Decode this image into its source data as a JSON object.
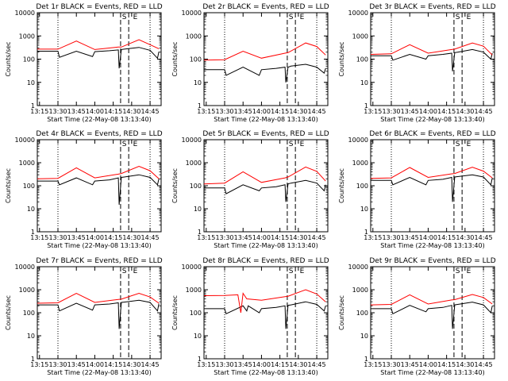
{
  "figure": {
    "ylabel": "Counts/sec",
    "xlabel": "Start Time (22-May-08 13:13:40)",
    "x_ticks": [
      "13:15",
      "13:30",
      "13:45",
      "14:00",
      "14:15",
      "14:30",
      "14:45"
    ],
    "y_ticks": [
      "1",
      "10",
      "100",
      "1000",
      "10000"
    ],
    "marker_S": "S",
    "marker_E": "E",
    "colors": {
      "events": "#000000",
      "lld": "#ff0000"
    }
  },
  "chart_data": [
    {
      "type": "line",
      "title": "Det 1r BLACK = Events, RED = LLD",
      "ylog": true,
      "ylim": [
        1,
        10000
      ],
      "xlim": [
        13.22,
        14.9
      ],
      "dotted_lines": [
        13.5,
        14.75
      ],
      "dashed_lines": [
        14.35,
        14.46
      ],
      "markers": {
        "S": 14.4,
        "E": 14.55
      },
      "series": [
        {
          "name": "BLACK = Events",
          "x": [
            13.22,
            13.5,
            13.52,
            13.75,
            13.97,
            14.0,
            14.2,
            14.32,
            14.33,
            14.36,
            14.4,
            14.6,
            14.75,
            14.85,
            14.87
          ],
          "values": [
            220,
            220,
            120,
            220,
            130,
            210,
            230,
            250,
            40,
            260,
            270,
            320,
            240,
            110,
            210
          ]
        },
        {
          "name": "RED = LLD",
          "x": [
            13.22,
            13.5,
            13.75,
            14.0,
            14.32,
            14.36,
            14.6,
            14.75,
            14.87
          ],
          "values": [
            270,
            270,
            600,
            260,
            330,
            330,
            680,
            420,
            280
          ]
        }
      ]
    },
    {
      "type": "line",
      "title": "Det 2r BLACK = Events, RED = LLD",
      "ylog": true,
      "ylim": [
        1,
        10000
      ],
      "xlim": [
        13.22,
        14.9
      ],
      "dotted_lines": [
        13.5,
        14.75
      ],
      "dashed_lines": [
        14.35,
        14.46
      ],
      "markers": {
        "S": 14.4,
        "E": 14.55
      },
      "series": [
        {
          "name": "BLACK = Events",
          "x": [
            13.22,
            13.5,
            13.52,
            13.75,
            13.97,
            14.0,
            14.2,
            14.32,
            14.33,
            14.36,
            14.4,
            14.6,
            14.75,
            14.85,
            14.87
          ],
          "values": [
            35,
            35,
            20,
            45,
            20,
            35,
            40,
            45,
            10,
            45,
            50,
            60,
            45,
            25,
            40
          ]
        },
        {
          "name": "RED = LLD",
          "x": [
            13.22,
            13.5,
            13.75,
            14.0,
            14.32,
            14.36,
            14.6,
            14.75,
            14.87
          ],
          "values": [
            90,
            95,
            220,
            110,
            180,
            190,
            500,
            350,
            150
          ]
        }
      ]
    },
    {
      "type": "line",
      "title": "Det 3r BLACK = Events, RED = LLD",
      "ylog": true,
      "ylim": [
        1,
        10000
      ],
      "xlim": [
        13.22,
        14.9
      ],
      "dotted_lines": [
        13.5,
        14.75
      ],
      "dashed_lines": [
        14.35,
        14.46
      ],
      "markers": {
        "S": 14.4,
        "E": 14.55
      },
      "series": [
        {
          "name": "BLACK = Events",
          "x": [
            13.22,
            13.5,
            13.52,
            13.75,
            13.97,
            14.0,
            14.2,
            14.32,
            14.33,
            14.36,
            14.4,
            14.6,
            14.75,
            14.85,
            14.87
          ],
          "values": [
            140,
            140,
            90,
            160,
            100,
            140,
            160,
            180,
            30,
            190,
            200,
            260,
            200,
            100,
            180
          ]
        },
        {
          "name": "RED = LLD",
          "x": [
            13.22,
            13.5,
            13.75,
            14.0,
            14.32,
            14.36,
            14.6,
            14.75,
            14.87
          ],
          "values": [
            160,
            170,
            420,
            180,
            260,
            270,
            500,
            360,
            150
          ]
        }
      ]
    },
    {
      "type": "line",
      "title": "Det 4r BLACK = Events, RED = LLD",
      "ylog": true,
      "ylim": [
        1,
        10000
      ],
      "xlim": [
        13.22,
        14.9
      ],
      "dotted_lines": [
        13.5,
        14.75
      ],
      "dashed_lines": [
        14.35,
        14.46
      ],
      "markers": {
        "S": 14.4,
        "E": 14.55
      },
      "series": [
        {
          "name": "BLACK = Events",
          "x": [
            13.22,
            13.5,
            13.52,
            13.75,
            13.97,
            14.0,
            14.2,
            14.32,
            14.33,
            14.36,
            14.4,
            14.6,
            14.75,
            14.85,
            14.87
          ],
          "values": [
            160,
            160,
            110,
            220,
            110,
            160,
            180,
            220,
            15,
            230,
            240,
            300,
            230,
            110,
            200
          ]
        },
        {
          "name": "RED = LLD",
          "x": [
            13.22,
            13.5,
            13.75,
            14.0,
            14.32,
            14.36,
            14.6,
            14.75,
            14.87
          ],
          "values": [
            200,
            210,
            600,
            220,
            320,
            340,
            700,
            450,
            200
          ]
        }
      ]
    },
    {
      "type": "line",
      "title": "Det 5r BLACK = Events, RED = LLD",
      "ylog": true,
      "ylim": [
        1,
        10000
      ],
      "xlim": [
        13.22,
        14.9
      ],
      "dotted_lines": [
        13.5,
        14.75
      ],
      "dashed_lines": [
        14.35,
        14.46
      ],
      "markers": {
        "S": 14.4,
        "E": 14.55
      },
      "series": [
        {
          "name": "BLACK = Events",
          "x": [
            13.22,
            13.5,
            13.52,
            13.75,
            13.97,
            14.0,
            14.2,
            14.32,
            14.33,
            14.36,
            14.4,
            14.6,
            14.75,
            14.85,
            14.87
          ],
          "values": [
            80,
            80,
            45,
            110,
            60,
            80,
            90,
            110,
            20,
            120,
            130,
            170,
            130,
            60,
            110
          ]
        },
        {
          "name": "RED = LLD",
          "x": [
            13.22,
            13.5,
            13.75,
            14.0,
            14.32,
            14.36,
            14.6,
            14.75,
            14.87
          ],
          "values": [
            120,
            130,
            400,
            140,
            220,
            240,
            650,
            420,
            160
          ]
        }
      ]
    },
    {
      "type": "line",
      "title": "Det 6r BLACK = Events, RED = LLD",
      "ylog": true,
      "ylim": [
        1,
        10000
      ],
      "xlim": [
        13.22,
        14.9
      ],
      "dotted_lines": [
        13.5,
        14.75
      ],
      "dashed_lines": [
        14.35,
        14.46
      ],
      "markers": {
        "S": 14.4,
        "E": 14.55
      },
      "series": [
        {
          "name": "BLACK = Events",
          "x": [
            13.22,
            13.5,
            13.52,
            13.75,
            13.97,
            14.0,
            14.2,
            14.32,
            14.33,
            14.36,
            14.4,
            14.6,
            14.75,
            14.85,
            14.87
          ],
          "values": [
            170,
            170,
            110,
            230,
            110,
            170,
            190,
            230,
            20,
            240,
            250,
            300,
            240,
            110,
            220
          ]
        },
        {
          "name": "RED = LLD",
          "x": [
            13.22,
            13.5,
            13.75,
            14.0,
            14.32,
            14.36,
            14.6,
            14.75,
            14.87
          ],
          "values": [
            210,
            220,
            620,
            230,
            330,
            340,
            640,
            430,
            220
          ]
        }
      ]
    },
    {
      "type": "line",
      "title": "Det 7r BLACK = Events, RED = LLD",
      "ylog": true,
      "ylim": [
        1,
        10000
      ],
      "xlim": [
        13.22,
        14.9
      ],
      "dotted_lines": [
        13.5,
        14.75
      ],
      "dashed_lines": [
        14.35,
        14.46
      ],
      "markers": {
        "S": 14.4,
        "E": 14.55
      },
      "series": [
        {
          "name": "BLACK = Events",
          "x": [
            13.22,
            13.5,
            13.52,
            13.75,
            13.97,
            14.0,
            14.2,
            14.32,
            14.33,
            14.36,
            14.4,
            14.6,
            14.75,
            14.85,
            14.87
          ],
          "values": [
            220,
            220,
            120,
            260,
            130,
            220,
            240,
            270,
            20,
            280,
            290,
            350,
            280,
            120,
            250
          ]
        },
        {
          "name": "RED = LLD",
          "x": [
            13.22,
            13.5,
            13.75,
            14.0,
            14.32,
            14.36,
            14.6,
            14.75,
            14.87
          ],
          "values": [
            260,
            270,
            700,
            280,
            380,
            390,
            700,
            480,
            260
          ]
        }
      ]
    },
    {
      "type": "line",
      "title": "Det 8r BLACK = Events, RED = LLD",
      "ylog": true,
      "ylim": [
        1,
        10000
      ],
      "xlim": [
        13.22,
        14.9
      ],
      "dotted_lines": [
        13.5,
        14.75
      ],
      "dashed_lines": [
        14.35,
        14.46
      ],
      "markers": {
        "S": 14.4,
        "E": 14.55
      },
      "series": [
        {
          "name": "BLACK = Events",
          "x": [
            13.22,
            13.5,
            13.52,
            13.75,
            13.8,
            13.82,
            13.97,
            14.0,
            14.2,
            14.32,
            14.33,
            14.36,
            14.4,
            14.6,
            14.75,
            14.85,
            14.87
          ],
          "values": [
            150,
            150,
            90,
            200,
            120,
            200,
            100,
            150,
            170,
            200,
            20,
            210,
            220,
            300,
            230,
            120,
            200
          ]
        },
        {
          "name": "RED = LLD",
          "x": [
            13.22,
            13.5,
            13.68,
            13.72,
            13.75,
            13.8,
            14.0,
            14.32,
            14.36,
            14.6,
            14.75,
            14.87
          ],
          "values": [
            550,
            560,
            600,
            100,
            700,
            400,
            350,
            500,
            520,
            1000,
            650,
            300
          ]
        }
      ]
    },
    {
      "type": "line",
      "title": "Det 9r BLACK = Events, RED = LLD",
      "ylog": true,
      "ylim": [
        1,
        10000
      ],
      "xlim": [
        13.22,
        14.9
      ],
      "dotted_lines": [
        13.5,
        14.75
      ],
      "dashed_lines": [
        14.35,
        14.46
      ],
      "markers": {
        "S": 14.4,
        "E": 14.55
      },
      "series": [
        {
          "name": "BLACK = Events",
          "x": [
            13.22,
            13.5,
            13.52,
            13.75,
            13.97,
            14.0,
            14.2,
            14.32,
            14.33,
            14.36,
            14.4,
            14.6,
            14.75,
            14.85,
            14.87
          ],
          "values": [
            150,
            150,
            90,
            210,
            110,
            150,
            170,
            210,
            20,
            220,
            230,
            290,
            220,
            100,
            200
          ]
        },
        {
          "name": "RED = LLD",
          "x": [
            13.22,
            13.5,
            13.75,
            14.0,
            14.32,
            14.36,
            14.6,
            14.75,
            14.87
          ],
          "values": [
            220,
            230,
            600,
            240,
            360,
            370,
            620,
            460,
            240
          ]
        }
      ]
    }
  ]
}
